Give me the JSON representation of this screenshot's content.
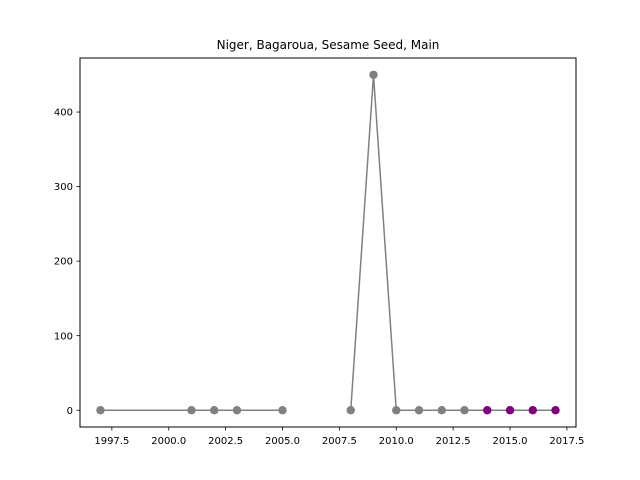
{
  "chart_data": {
    "type": "line",
    "title": "Niger, Bagaroua, Sesame Seed, Main",
    "xlabel": "",
    "ylabel": "",
    "xlim": [
      1996.1,
      2017.9
    ],
    "ylim": [
      -22.5,
      472.5
    ],
    "x_ticks": [
      1997.5,
      2000.0,
      2002.5,
      2005.0,
      2007.5,
      2010.0,
      2012.5,
      2015.0,
      2017.5
    ],
    "x_tick_labels": [
      "1997.5",
      "2000.0",
      "2002.5",
      "2005.0",
      "2007.5",
      "2010.0",
      "2012.5",
      "2015.0",
      "2017.5"
    ],
    "y_ticks": [
      0,
      100,
      200,
      300,
      400
    ],
    "y_tick_labels": [
      "0",
      "100",
      "200",
      "300",
      "400"
    ],
    "grid": false,
    "line_color": "#808080",
    "series": [
      {
        "segments": [
          [
            [
              1997,
              0
            ],
            [
              2001,
              0
            ],
            [
              2002,
              0
            ],
            [
              2003,
              0
            ],
            [
              2005,
              0
            ]
          ],
          [
            [
              2008,
              0
            ],
            [
              2009,
              450
            ],
            [
              2010,
              0
            ],
            [
              2011,
              0
            ],
            [
              2012,
              0
            ],
            [
              2013,
              0
            ],
            [
              2014,
              0
            ],
            [
              2015,
              0
            ],
            [
              2016,
              0
            ],
            [
              2017,
              0
            ]
          ]
        ],
        "points": [
          {
            "x": 1997,
            "y": 0,
            "color": "#808080"
          },
          {
            "x": 2001,
            "y": 0,
            "color": "#808080"
          },
          {
            "x": 2002,
            "y": 0,
            "color": "#808080"
          },
          {
            "x": 2003,
            "y": 0,
            "color": "#808080"
          },
          {
            "x": 2005,
            "y": 0,
            "color": "#808080"
          },
          {
            "x": 2008,
            "y": 0,
            "color": "#808080"
          },
          {
            "x": 2009,
            "y": 450,
            "color": "#808080"
          },
          {
            "x": 2010,
            "y": 0,
            "color": "#808080"
          },
          {
            "x": 2011,
            "y": 0,
            "color": "#808080"
          },
          {
            "x": 2012,
            "y": 0,
            "color": "#808080"
          },
          {
            "x": 2013,
            "y": 0,
            "color": "#808080"
          },
          {
            "x": 2014,
            "y": 0,
            "color": "#800080"
          },
          {
            "x": 2015,
            "y": 0,
            "color": "#800080"
          },
          {
            "x": 2016,
            "y": 0,
            "color": "#800080"
          },
          {
            "x": 2017,
            "y": 0,
            "color": "#800080"
          }
        ]
      }
    ]
  }
}
